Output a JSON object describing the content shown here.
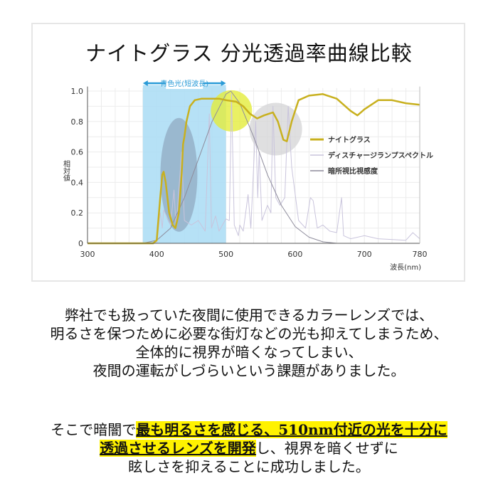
{
  "title": "ナイトグラス 分光透過率曲線比較",
  "chart_data": {
    "type": "line",
    "title": "ナイトグラス 分光透過率曲線比較",
    "xlabel": "波長(nm)",
    "ylabel": "相対値",
    "xlim": [
      300,
      780
    ],
    "ylim": [
      0,
      1.0
    ],
    "xticks": [
      "300",
      "400",
      "500",
      "600",
      "700",
      "780"
    ],
    "yticks": [
      "0",
      "0.2",
      "0.4",
      "0.6",
      "0.8",
      "1.0"
    ],
    "grid": true,
    "legend_position": "right",
    "band": {
      "label": "青色光(短波長)",
      "range": [
        380,
        500
      ],
      "color": "#a9dcf5"
    },
    "highlights": [
      {
        "center": [
          432,
          0.45
        ],
        "color": "#8ea6bf"
      },
      {
        "center": [
          508,
          0.87
        ],
        "color": "#e4ec3c"
      },
      {
        "center": [
          572,
          0.75
        ],
        "color": "#d4d4d6"
      }
    ],
    "series": [
      {
        "name": "ナイトグラス",
        "color": "#c8b01e",
        "x": [
          300,
          395,
          400,
          405,
          408,
          410,
          413,
          418,
          423,
          427,
          432,
          436,
          438,
          440,
          443,
          448,
          455,
          465,
          480,
          490,
          500,
          515,
          525,
          535,
          545,
          555,
          568,
          575,
          583,
          588,
          595,
          605,
          620,
          640,
          660,
          680,
          690,
          700,
          720,
          740,
          760,
          780
        ],
        "y": [
          0,
          0,
          0.02,
          0.3,
          0.45,
          0.47,
          0.4,
          0.2,
          0.12,
          0.1,
          0.2,
          0.45,
          0.65,
          0.7,
          0.8,
          0.9,
          0.94,
          0.95,
          0.95,
          0.95,
          0.94,
          0.93,
          0.9,
          0.85,
          0.82,
          0.84,
          0.86,
          0.8,
          0.68,
          0.67,
          0.8,
          0.94,
          0.97,
          0.98,
          0.95,
          0.87,
          0.84,
          0.88,
          0.94,
          0.94,
          0.92,
          0.91
        ]
      },
      {
        "name": "ディスチャージランプスペクトル",
        "color": "#c9c4dc",
        "x": [
          300,
          400,
          405,
          408,
          410,
          420,
          425,
          428,
          436,
          440,
          450,
          460,
          470,
          476,
          479,
          485,
          490,
          495,
          500,
          505,
          508,
          512,
          518,
          520,
          525,
          532,
          536,
          543,
          546,
          548,
          552,
          560,
          565,
          568,
          572,
          578,
          585,
          590,
          595,
          605,
          615,
          622,
          626,
          632,
          640,
          650,
          660,
          667,
          670,
          680,
          700,
          720,
          760,
          770,
          780
        ],
        "y": [
          0,
          0,
          0.2,
          0.1,
          0.22,
          0.12,
          0.35,
          0.1,
          0.6,
          0.15,
          0.12,
          0.15,
          0.08,
          0.85,
          0.1,
          0.18,
          0.08,
          0.12,
          0.16,
          0.15,
          0.98,
          0.12,
          0.05,
          0.12,
          0.08,
          0.32,
          0.1,
          0.8,
          0.3,
          0.6,
          0.15,
          0.25,
          0.2,
          0.9,
          0.3,
          0.25,
          0.3,
          0.9,
          0.5,
          0.15,
          0.1,
          0.3,
          0.28,
          0.1,
          0.12,
          0.08,
          0.07,
          0.3,
          0.05,
          0.03,
          0.05,
          0.03,
          0.02,
          0.07,
          0.03
        ]
      },
      {
        "name": "暗所視比視感度",
        "color": "#8e8c9c",
        "x": [
          300,
          380,
          400,
          420,
          440,
          460,
          480,
          500,
          507,
          520,
          540,
          560,
          580,
          600,
          620,
          640,
          660,
          780
        ],
        "y": [
          0,
          0,
          0.02,
          0.1,
          0.3,
          0.55,
          0.8,
          0.98,
          1.0,
          0.92,
          0.7,
          0.45,
          0.25,
          0.11,
          0.04,
          0.01,
          0,
          0
        ]
      }
    ]
  },
  "paragraph1": [
    "弊社でも扱っていた夜間に使用できるカラーレンズでは、",
    "明るさを保つために必要な街灯などの光も抑えてしまうため、",
    "全体的に視界が暗くなってしまい、",
    "夜間の運転がしづらいという課題がありました。"
  ],
  "paragraph2": {
    "line1_plain": "そこで暗闇で",
    "line1_highlight": "最も明るさを感じる、510nm付近の光を十分に",
    "line2_highlight": "透過させるレンズを開発",
    "line2_plain": "し、視界を暗くせずに",
    "line3": "眩しさを抑えることに成功しました。"
  },
  "highlight_color": "#fff200"
}
